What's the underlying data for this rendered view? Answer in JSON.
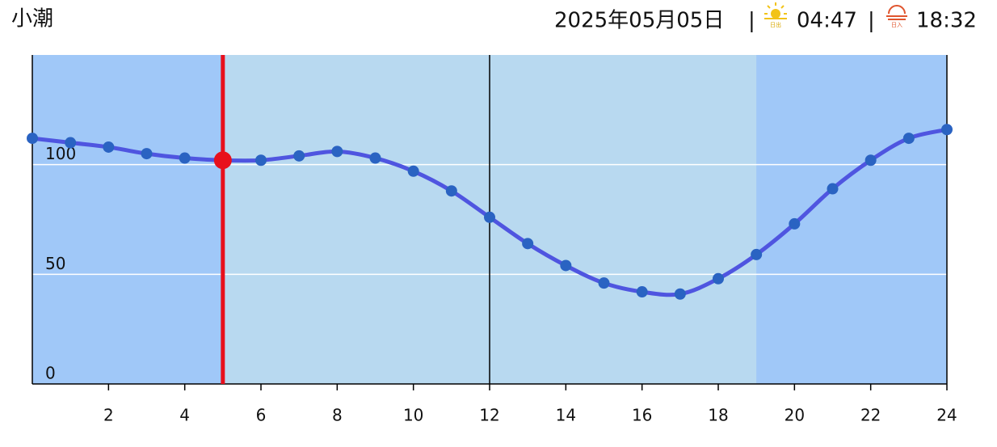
{
  "header": {
    "tide_name": "小潮",
    "date": "2025年05月05日",
    "separator": "|",
    "sunrise_icon_text": "日出",
    "sunrise": "04:47",
    "sunset_icon_text": "日入",
    "sunset": "18:32"
  },
  "chart_data": {
    "type": "line",
    "x": [
      0,
      1,
      2,
      3,
      4,
      5,
      6,
      7,
      8,
      9,
      10,
      11,
      12,
      13,
      14,
      15,
      16,
      17,
      18,
      19,
      20,
      21,
      22,
      23,
      24
    ],
    "series": [
      {
        "color": "#4f55e0",
        "marker_color": "#2a63c2",
        "values": [
          112,
          110,
          108,
          105,
          103,
          102,
          102,
          104,
          106,
          103,
          97,
          88,
          76,
          64,
          54,
          46,
          42,
          41,
          48,
          59,
          73,
          89,
          102,
          112,
          116
        ]
      }
    ],
    "xlim": [
      0,
      24
    ],
    "xticks": [
      2,
      4,
      6,
      8,
      10,
      12,
      14,
      16,
      18,
      20,
      22,
      24
    ],
    "ylim": [
      0,
      150
    ],
    "yticks": [
      0,
      50,
      100
    ],
    "grid": true,
    "night_color": "#a0c8f8",
    "day_color": "#b8d9f0",
    "day_range": [
      5,
      19
    ],
    "noon": 12,
    "current": {
      "x": 5,
      "value": 102,
      "color": "#e8101c"
    }
  }
}
